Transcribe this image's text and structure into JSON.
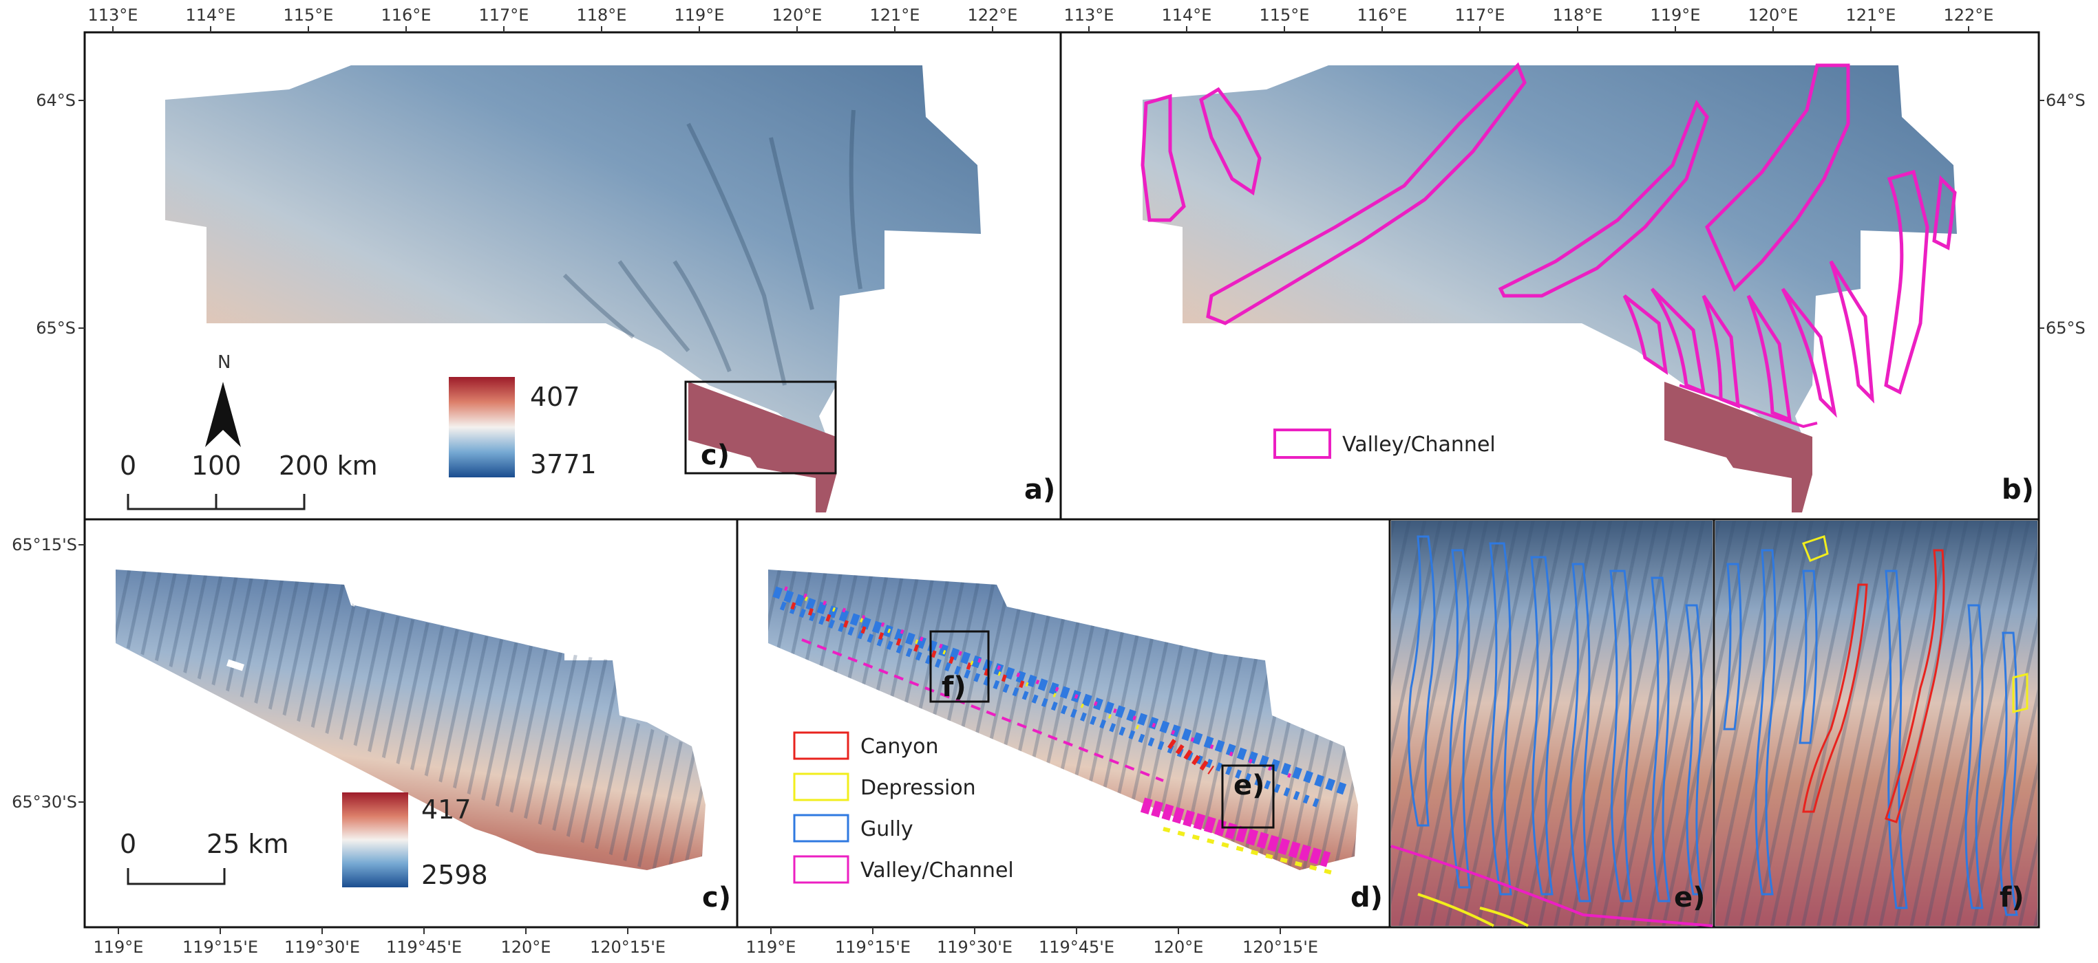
{
  "figure": {
    "top_lon_ticks": [
      "113°E",
      "114°E",
      "115°E",
      "116°E",
      "117°E",
      "118°E",
      "119°E",
      "120°E",
      "121°E",
      "122°E",
      "113°E",
      "114°E",
      "115°E",
      "116°E",
      "117°E",
      "118°E",
      "119°E",
      "120°E",
      "121°E",
      "122°E"
    ],
    "bottom_lon_ticks": [
      "119°E",
      "119°15'E",
      "119°30'E",
      "119°45'E",
      "120°E",
      "120°15'E",
      "119°E",
      "119°15'E",
      "119°30'E",
      "119°45'E",
      "120°E",
      "120°15'E"
    ],
    "left_lat_ticks_top": [
      "64°S",
      "65°S"
    ],
    "right_lat_ticks_top": [
      "64°S",
      "65°S"
    ],
    "left_lat_ticks_bottom": [
      "65°15'S",
      "65°30'S"
    ],
    "panels": {
      "a": {
        "label": "a)",
        "north": "N",
        "scale": {
          "zero": "0",
          "mid": "100",
          "end": "200 km"
        },
        "depth_legend": {
          "top": "407",
          "bottom": "3771"
        },
        "inset_label": "c)"
      },
      "b": {
        "label": "b)",
        "legend": "Valley/Channel"
      },
      "c": {
        "label": "c)",
        "scale": {
          "zero": "0",
          "end": "25 km"
        },
        "depth_legend": {
          "top": "417",
          "bottom": "2598"
        }
      },
      "d": {
        "label": "d)",
        "legend": [
          "Canyon",
          "Depression",
          "Gully",
          "Valley/Channel"
        ],
        "inset_e": "e)",
        "inset_f": "f)"
      },
      "e": {
        "label": "e)"
      },
      "f": {
        "label": "f)"
      }
    },
    "colors": {
      "canyon": "#e8231e",
      "depression": "#f2ee1c",
      "gully": "#2f79e0",
      "valley": "#ec1fc2",
      "shallow": "#a8282e",
      "deep": "#1d5aa0"
    }
  }
}
